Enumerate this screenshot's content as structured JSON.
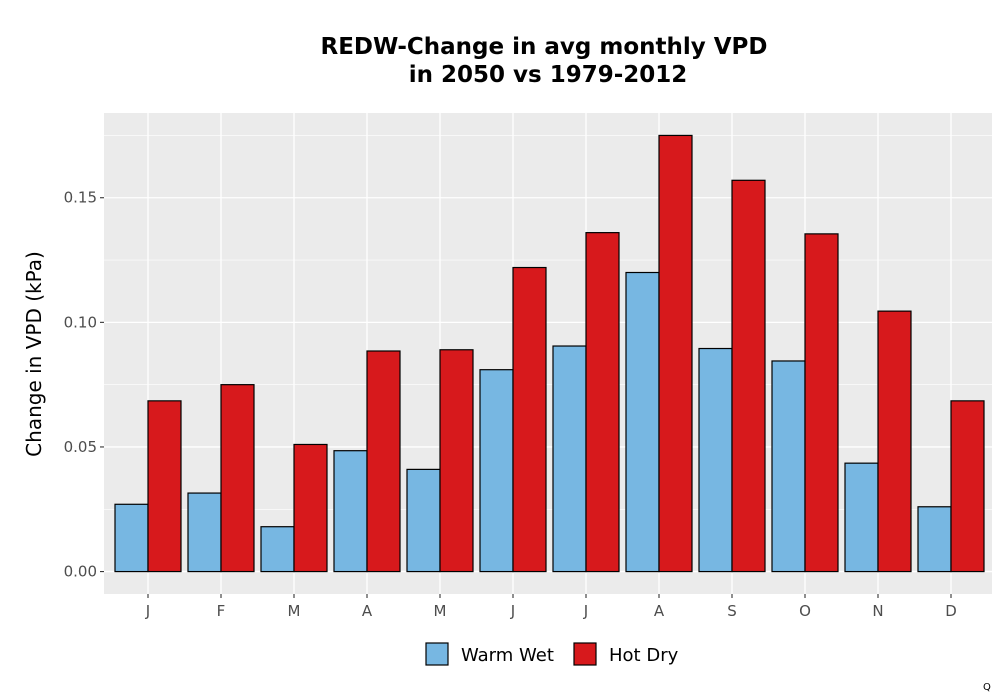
{
  "chart_data": {
    "type": "bar",
    "title": "REDW-Change in avg monthly VPD",
    "subtitle": "in 2050 vs 1979-2012",
    "xlabel": "",
    "ylabel": "Change in VPD (kPa)",
    "categories": [
      "J",
      "F",
      "M",
      "A",
      "M",
      "J",
      "J",
      "A",
      "S",
      "O",
      "N",
      "D"
    ],
    "series": [
      {
        "name": "Warm Wet",
        "color": "#77b7e2",
        "values": [
          0.027,
          0.0315,
          0.018,
          0.0485,
          0.041,
          0.081,
          0.0905,
          0.12,
          0.0895,
          0.0845,
          0.0435,
          0.026
        ]
      },
      {
        "name": "Hot Dry",
        "color": "#d7191c",
        "values": [
          0.0685,
          0.075,
          0.051,
          0.0885,
          0.089,
          0.122,
          0.136,
          0.175,
          0.157,
          0.1355,
          0.1045,
          0.0685
        ]
      }
    ],
    "yticks": [
      0,
      0.05,
      0.1,
      0.15
    ],
    "ytick_labels": [
      "0.00",
      "0.05",
      "0.10",
      "0.15"
    ],
    "ylim": [
      -0.009,
      0.184
    ],
    "grid": true,
    "legend_position": "bottom"
  },
  "corner_mark": "Q"
}
